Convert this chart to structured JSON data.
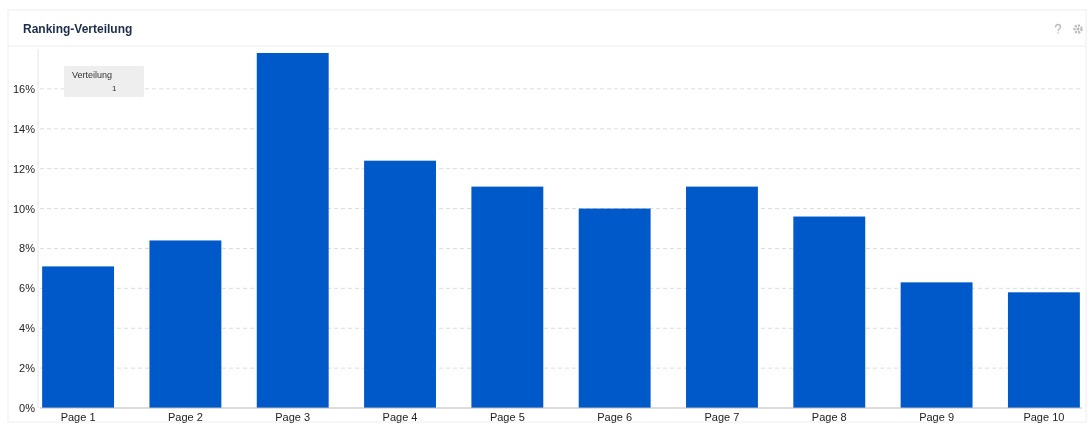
{
  "chart_data": {
    "type": "bar",
    "title": "Ranking-Verteilung",
    "categories": [
      "Page 1",
      "Page 2",
      "Page 3",
      "Page 4",
      "Page 5",
      "Page 6",
      "Page 7",
      "Page 8",
      "Page 9",
      "Page 10"
    ],
    "series": [
      {
        "name": "Verteilung",
        "color": "#0059c9",
        "values": [
          7.1,
          8.4,
          17.8,
          12.4,
          11.1,
          10.0,
          11.1,
          9.6,
          6.3,
          5.8
        ]
      }
    ],
    "ylim": [
      0,
      18
    ],
    "yticks": [
      {
        "value": 0,
        "label": "0%"
      },
      {
        "value": 2,
        "label": "2%"
      },
      {
        "value": 4,
        "label": "4%"
      },
      {
        "value": 6,
        "label": "6%"
      },
      {
        "value": 8,
        "label": "8%"
      },
      {
        "value": 10,
        "label": "10%"
      },
      {
        "value": 12,
        "label": "12%"
      },
      {
        "value": 14,
        "label": "14%"
      },
      {
        "value": 16,
        "label": "16%"
      }
    ],
    "grid": "y",
    "legend": "top left",
    "annotations": [
      "1"
    ]
  }
}
